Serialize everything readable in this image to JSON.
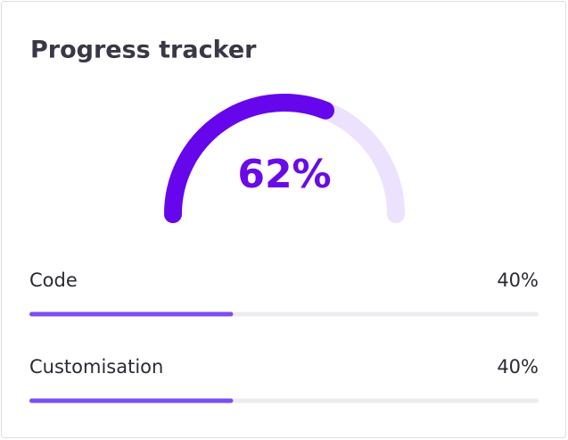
{
  "title": "Progress tracker",
  "gauge": {
    "value": 62,
    "label": "62%"
  },
  "items": [
    {
      "name": "Code",
      "value": 40,
      "label": "40%"
    },
    {
      "name": "Customisation",
      "value": 40,
      "label": "40%"
    }
  ]
}
